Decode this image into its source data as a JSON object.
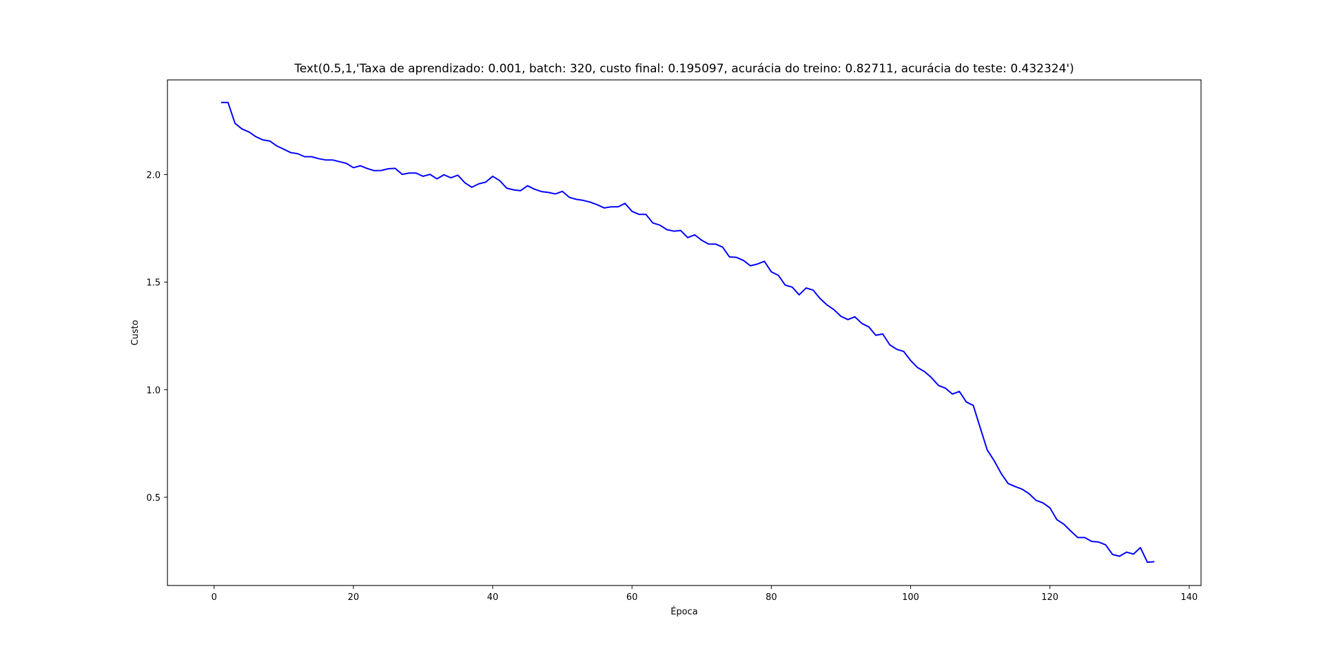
{
  "chart_data": {
    "type": "line",
    "title": "Text(0.5,1,'Taxa de aprendizado: 0.001, batch: 320, custo final: 0.195097, acurácia do treino: 0.82711, acurácia do teste: 0.432324')",
    "xlabel": "Época",
    "ylabel": "Custo",
    "xlim": [
      -6.7,
      141.7
    ],
    "ylim": [
      0.09,
      2.44
    ],
    "xticks": [
      0,
      20,
      40,
      60,
      80,
      100,
      120,
      140
    ],
    "xtick_labels": [
      "0",
      "20",
      "40",
      "60",
      "80",
      "100",
      "120",
      "140"
    ],
    "yticks": [
      0.5,
      1.0,
      1.5,
      2.0
    ],
    "ytick_labels": [
      "0.5",
      "1.0",
      "1.5",
      "2.0"
    ],
    "grid": false,
    "series": [
      {
        "color": "#0000ff",
        "x": [
          1,
          2,
          3,
          4,
          5,
          6,
          7,
          8,
          9,
          10,
          11,
          12,
          13,
          14,
          15,
          16,
          17,
          18,
          19,
          20,
          21,
          22,
          23,
          24,
          25,
          26,
          27,
          28,
          29,
          30,
          31,
          32,
          33,
          34,
          35,
          36,
          37,
          38,
          39,
          40,
          41,
          42,
          43,
          44,
          45,
          46,
          47,
          48,
          49,
          50,
          51,
          52,
          53,
          54,
          55,
          56,
          57,
          58,
          59,
          60,
          61,
          62,
          63,
          64,
          65,
          66,
          67,
          68,
          69,
          70,
          71,
          72,
          73,
          74,
          75,
          76,
          77,
          78,
          79,
          80,
          81,
          82,
          83,
          84,
          85,
          86,
          87,
          88,
          89,
          90,
          91,
          92,
          93,
          94,
          95,
          96,
          97,
          98,
          99,
          100,
          101,
          102,
          103,
          104,
          105,
          106,
          107,
          108,
          109,
          110,
          111,
          112,
          113,
          114,
          115,
          116,
          117,
          118,
          119,
          120,
          121,
          122,
          123,
          124,
          125,
          126,
          127,
          128,
          129,
          130,
          131,
          132,
          133,
          134,
          135
        ],
        "y": [
          2.335,
          2.335,
          2.238,
          2.212,
          2.198,
          2.176,
          2.161,
          2.156,
          2.133,
          2.118,
          2.102,
          2.097,
          2.083,
          2.083,
          2.074,
          2.068,
          2.068,
          2.06,
          2.052,
          2.032,
          2.041,
          2.028,
          2.018,
          2.019,
          2.027,
          2.029,
          2.001,
          2.007,
          2.007,
          1.992,
          2.001,
          1.98,
          1.999,
          1.985,
          1.997,
          1.962,
          1.941,
          1.957,
          1.965,
          1.992,
          1.972,
          1.937,
          1.929,
          1.925,
          1.948,
          1.932,
          1.921,
          1.917,
          1.91,
          1.922,
          1.894,
          1.885,
          1.88,
          1.872,
          1.86,
          1.845,
          1.85,
          1.85,
          1.866,
          1.829,
          1.815,
          1.815,
          1.775,
          1.765,
          1.744,
          1.737,
          1.74,
          1.707,
          1.72,
          1.695,
          1.677,
          1.677,
          1.663,
          1.617,
          1.615,
          1.601,
          1.576,
          1.584,
          1.597,
          1.548,
          1.532,
          1.486,
          1.477,
          1.441,
          1.473,
          1.463,
          1.424,
          1.394,
          1.372,
          1.341,
          1.326,
          1.339,
          1.308,
          1.292,
          1.253,
          1.259,
          1.209,
          1.188,
          1.178,
          1.136,
          1.103,
          1.084,
          1.056,
          1.02,
          1.007,
          0.98,
          0.992,
          0.943,
          0.927,
          0.823,
          0.72,
          0.67,
          0.611,
          0.564,
          0.55,
          0.538,
          0.517,
          0.486,
          0.474,
          0.451,
          0.396,
          0.375,
          0.343,
          0.313,
          0.313,
          0.295,
          0.292,
          0.279,
          0.234,
          0.226,
          0.245,
          0.236,
          0.266,
          0.198,
          0.201
        ]
      }
    ]
  }
}
